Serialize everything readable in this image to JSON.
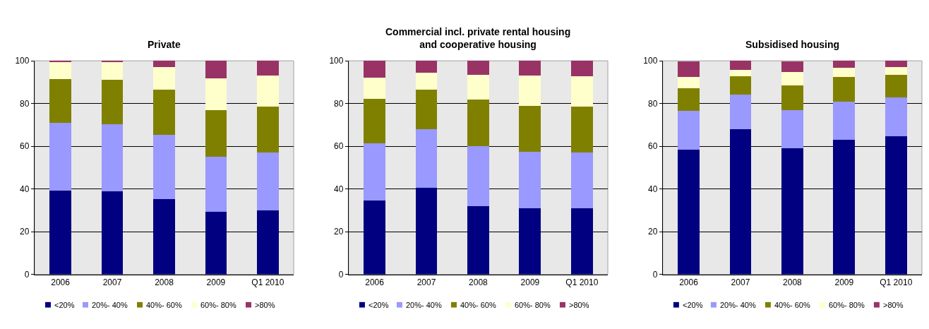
{
  "chart_data": [
    {
      "type": "bar",
      "title": "Private",
      "stacked": true,
      "categories": [
        "2006",
        "2007",
        "2008",
        "2009",
        "Q1 2010"
      ],
      "ylim": [
        0,
        100
      ],
      "yticks": [
        0,
        20,
        40,
        60,
        80,
        100
      ],
      "grid": "y",
      "legend": "bottom",
      "series": [
        {
          "name": "<20%",
          "color": "#000080",
          "values": [
            39.2,
            39,
            35.2,
            29.2,
            29.8
          ]
        },
        {
          "name": "20%- 40%",
          "color": "#9999ff",
          "values": [
            31.8,
            31.3,
            30.1,
            26,
            27.2
          ]
        },
        {
          "name": "40%- 60%",
          "color": "#808000",
          "values": [
            20.5,
            20.7,
            21.2,
            21.8,
            21.6
          ]
        },
        {
          "name": "60%- 80%",
          "color": "#ffffcc",
          "values": [
            7.9,
            8.4,
            10.7,
            14.8,
            14.5
          ]
        },
        {
          "name": ">80%",
          "color": "#993366",
          "values": [
            0.6,
            0.6,
            2.8,
            8.2,
            6.9
          ]
        }
      ]
    },
    {
      "type": "bar",
      "title": "Commercial incl. private rental housing\nand cooperative housing",
      "stacked": true,
      "categories": [
        "2006",
        "2007",
        "2008",
        "2009",
        "Q1 2010"
      ],
      "ylim": [
        0,
        100
      ],
      "yticks": [
        0,
        20,
        40,
        60,
        80,
        100
      ],
      "grid": "y",
      "legend": "bottom",
      "series": [
        {
          "name": "<20%",
          "color": "#000080",
          "values": [
            34.5,
            40.4,
            32,
            30.8,
            30.8
          ]
        },
        {
          "name": "20%- 40%",
          "color": "#9999ff",
          "values": [
            26.9,
            27.6,
            28,
            26.7,
            26.2
          ]
        },
        {
          "name": "40%- 60%",
          "color": "#808000",
          "values": [
            20.7,
            18.6,
            21.8,
            21.3,
            21.5
          ]
        },
        {
          "name": "60%- 80%",
          "color": "#ffffcc",
          "values": [
            9.9,
            7.8,
            11.7,
            14.4,
            14.4
          ]
        },
        {
          "name": ">80%",
          "color": "#993366",
          "values": [
            8,
            5.6,
            6.5,
            6.8,
            7.1
          ]
        }
      ]
    },
    {
      "type": "bar",
      "title": "Subsidised housing",
      "stacked": true,
      "categories": [
        "2006",
        "2007",
        "2008",
        "2009",
        "Q1 2010"
      ],
      "ylim": [
        0,
        100
      ],
      "yticks": [
        0,
        20,
        40,
        60,
        80,
        100
      ],
      "grid": "y",
      "legend": "bottom",
      "series": [
        {
          "name": "<20%",
          "color": "#000080",
          "values": [
            58.4,
            68,
            59,
            62.9,
            64.7
          ]
        },
        {
          "name": "20%- 40%",
          "color": "#9999ff",
          "values": [
            18.3,
            16.2,
            18,
            18,
            18
          ]
        },
        {
          "name": "40%- 60%",
          "color": "#808000",
          "values": [
            10.5,
            8.7,
            11.4,
            11.4,
            10.8
          ]
        },
        {
          "name": "60%- 80%",
          "color": "#ffffcc",
          "values": [
            5.1,
            3,
            6.3,
            4.5,
            3.6
          ]
        },
        {
          "name": ">80%",
          "color": "#993366",
          "values": [
            7.5,
            4.1,
            5.1,
            3.2,
            2.9
          ]
        }
      ]
    }
  ]
}
